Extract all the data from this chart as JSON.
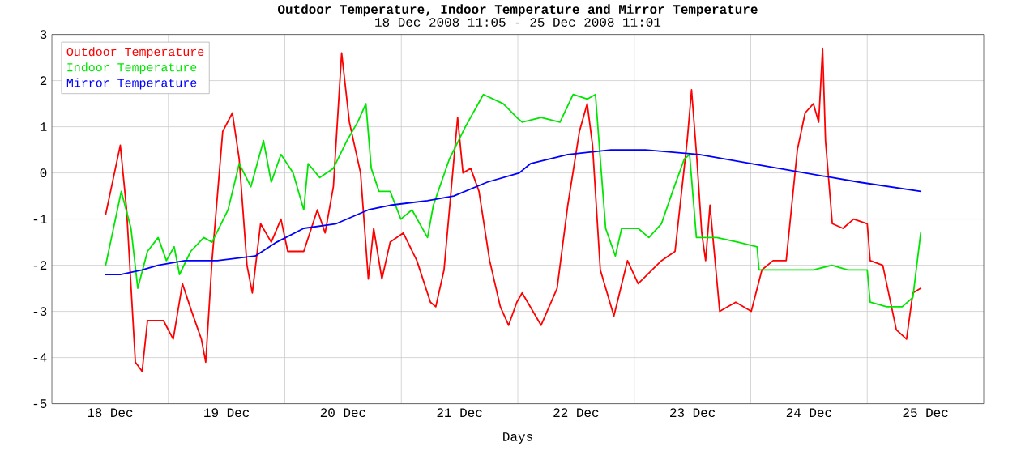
{
  "chart_data": {
    "type": "line",
    "title": "Outdoor Temperature, Indoor Temperature and Mirror Temperature",
    "subtitle": "18 Dec 2008 11:05  -  25 Dec 2008 11:01",
    "xlabel": "Days",
    "xlim": [
      "2008-12-18T00:00",
      "2008-12-26T00:00"
    ],
    "xticks": [
      {
        "value": "2008-12-18T12:00",
        "label": "18 Dec"
      },
      {
        "value": "2008-12-19T00:00",
        "label": null
      },
      {
        "value": "2008-12-19T12:00",
        "label": "19 Dec"
      },
      {
        "value": "2008-12-20T00:00",
        "label": null
      },
      {
        "value": "2008-12-20T12:00",
        "label": "20 Dec"
      },
      {
        "value": "2008-12-21T00:00",
        "label": null
      },
      {
        "value": "2008-12-21T12:00",
        "label": "21 Dec"
      },
      {
        "value": "2008-12-22T00:00",
        "label": null
      },
      {
        "value": "2008-12-22T12:00",
        "label": "22 Dec"
      },
      {
        "value": "2008-12-23T00:00",
        "label": null
      },
      {
        "value": "2008-12-23T12:00",
        "label": "23 Dec"
      },
      {
        "value": "2008-12-24T00:00",
        "label": null
      },
      {
        "value": "2008-12-24T12:00",
        "label": "24 Dec"
      },
      {
        "value": "2008-12-25T00:00",
        "label": null
      },
      {
        "value": "2008-12-25T12:00",
        "label": "25 Dec"
      }
    ],
    "ylim": [
      -5,
      3
    ],
    "yticks": [
      -5,
      -4,
      -3,
      -2,
      -1,
      0,
      1,
      2,
      3
    ],
    "grid": true,
    "legend": "top left",
    "marker": "none",
    "line_style": "solid",
    "series": [
      {
        "name": "Outdoor Temperature",
        "color": "#ff0000",
        "x": [
          "2008-12-18T11:05",
          "2008-12-18T14:06",
          "2008-12-18T15:24",
          "2008-12-18T17:12",
          "2008-12-18T18:36",
          "2008-12-18T19:42",
          "2008-12-18T23:00",
          "2008-12-19T01:00",
          "2008-12-19T02:54",
          "2008-12-19T04:48",
          "2008-12-19T06:48",
          "2008-12-19T07:42",
          "2008-12-19T09:00",
          "2008-12-19T11:12",
          "2008-12-19T13:12",
          "2008-12-19T14:36",
          "2008-12-19T16:12",
          "2008-12-19T17:18",
          "2008-12-19T19:00",
          "2008-12-19T21:12",
          "2008-12-19T23:12",
          "2008-12-20T00:36",
          "2008-12-20T03:54",
          "2008-12-20T06:42",
          "2008-12-20T08:18",
          "2008-12-20T10:00",
          "2008-12-20T11:42",
          "2008-12-20T13:18",
          "2008-12-20T15:36",
          "2008-12-20T17:12",
          "2008-12-20T18:18",
          "2008-12-20T20:00",
          "2008-12-20T21:42",
          "2008-12-21T00:24",
          "2008-12-21T03:12",
          "2008-12-21T06:00",
          "2008-12-21T07:06",
          "2008-12-21T08:48",
          "2008-12-21T11:36",
          "2008-12-21T12:42",
          "2008-12-21T14:18",
          "2008-12-21T16:00",
          "2008-12-21T18:12",
          "2008-12-21T20:24",
          "2008-12-21T22:06",
          "2008-12-21T23:48",
          "2008-12-22T00:54",
          "2008-12-22T04:48",
          "2008-12-22T08:06",
          "2008-12-22T10:18",
          "2008-12-22T12:42",
          "2008-12-22T14:18",
          "2008-12-22T15:24",
          "2008-12-22T17:00",
          "2008-12-22T19:48",
          "2008-12-22T22:36",
          "2008-12-23T00:48",
          "2008-12-23T05:36",
          "2008-12-23T08:24",
          "2008-12-23T10:54",
          "2008-12-23T11:48",
          "2008-12-23T12:54",
          "2008-12-23T13:54",
          "2008-12-23T14:42",
          "2008-12-23T15:36",
          "2008-12-23T17:36",
          "2008-12-23T20:54",
          "2008-12-24T00:06",
          "2008-12-24T02:18",
          "2008-12-24T04:36",
          "2008-12-24T07:18",
          "2008-12-24T09:36",
          "2008-12-24T11:12",
          "2008-12-24T12:54",
          "2008-12-24T14:00",
          "2008-12-24T14:48",
          "2008-12-24T15:24",
          "2008-12-24T16:48",
          "2008-12-24T19:00",
          "2008-12-24T21:12",
          "2008-12-25T00:00",
          "2008-12-25T00:36",
          "2008-12-25T03:12",
          "2008-12-25T06:00",
          "2008-12-25T08:06",
          "2008-12-25T09:24",
          "2008-12-25T11:01"
        ],
        "values": [
          -0.9,
          0.6,
          -0.8,
          -4.1,
          -4.3,
          -3.2,
          -3.2,
          -3.6,
          -2.4,
          -3.0,
          -3.6,
          -4.1,
          -1.9,
          0.9,
          1.3,
          0.3,
          -2.0,
          -2.6,
          -1.1,
          -1.5,
          -1.0,
          -1.7,
          -1.7,
          -0.8,
          -1.3,
          -0.3,
          2.6,
          1.1,
          0.0,
          -2.3,
          -1.2,
          -2.3,
          -1.5,
          -1.3,
          -1.9,
          -2.8,
          -2.9,
          -2.1,
          1.2,
          0.0,
          0.1,
          -0.4,
          -1.9,
          -2.9,
          -3.3,
          -2.8,
          -2.6,
          -3.3,
          -2.5,
          -0.7,
          0.9,
          1.5,
          0.6,
          -2.1,
          -3.1,
          -1.9,
          -2.4,
          -1.9,
          -1.7,
          0.7,
          1.8,
          0.3,
          -1.3,
          -1.9,
          -0.7,
          -3.0,
          -2.8,
          -3.0,
          -2.1,
          -1.9,
          -1.9,
          0.5,
          1.3,
          1.5,
          1.1,
          2.7,
          0.7,
          -1.1,
          -1.2,
          -1.0,
          -1.1,
          -1.9,
          -2.0,
          -3.4,
          -3.6,
          -2.6,
          -2.5
        ]
      },
      {
        "name": "Indoor Temperature",
        "color": "#00e600",
        "x": [
          "2008-12-18T11:05",
          "2008-12-18T14:18",
          "2008-12-18T16:18",
          "2008-12-18T17:42",
          "2008-12-18T19:42",
          "2008-12-18T21:54",
          "2008-12-18T23:36",
          "2008-12-19T01:12",
          "2008-12-19T02:18",
          "2008-12-19T04:36",
          "2008-12-19T07:18",
          "2008-12-19T09:00",
          "2008-12-19T12:18",
          "2008-12-19T14:36",
          "2008-12-19T17:00",
          "2008-12-19T19:36",
          "2008-12-19T21:12",
          "2008-12-19T23:12",
          "2008-12-20T01:42",
          "2008-12-20T03:54",
          "2008-12-20T04:48",
          "2008-12-20T07:12",
          "2008-12-20T10:00",
          "2008-12-20T12:48",
          "2008-12-20T15:00",
          "2008-12-20T16:42",
          "2008-12-20T17:48",
          "2008-12-20T19:24",
          "2008-12-20T21:42",
          "2008-12-20T23:54",
          "2008-12-21T02:12",
          "2008-12-21T05:24",
          "2008-12-21T06:36",
          "2008-12-21T09:54",
          "2008-12-21T13:12",
          "2008-12-21T16:54",
          "2008-12-21T21:00",
          "2008-12-21T23:48",
          "2008-12-22T00:54",
          "2008-12-22T04:48",
          "2008-12-22T08:42",
          "2008-12-22T11:24",
          "2008-12-22T14:18",
          "2008-12-22T16:00",
          "2008-12-22T17:00",
          "2008-12-22T18:06",
          "2008-12-22T20:06",
          "2008-12-22T21:24",
          "2008-12-23T00:48",
          "2008-12-23T03:00",
          "2008-12-23T05:36",
          "2008-12-23T07:54",
          "2008-12-23T10:18",
          "2008-12-23T11:24",
          "2008-12-23T12:48",
          "2008-12-23T17:00",
          "2008-12-23T21:24",
          "2008-12-24T01:18",
          "2008-12-24T01:42",
          "2008-12-24T04:06",
          "2008-12-24T08:36",
          "2008-12-24T12:54",
          "2008-12-24T16:42",
          "2008-12-24T20:00",
          "2008-12-25T00:00",
          "2008-12-25T00:36",
          "2008-12-25T04:00",
          "2008-12-25T07:12",
          "2008-12-25T09:24",
          "2008-12-25T11:01"
        ],
        "values": [
          -2.0,
          -0.4,
          -1.2,
          -2.5,
          -1.7,
          -1.4,
          -1.9,
          -1.6,
          -2.2,
          -1.7,
          -1.4,
          -1.5,
          -0.8,
          0.2,
          -0.3,
          0.7,
          -0.2,
          0.4,
          0.0,
          -0.8,
          0.2,
          -0.1,
          0.1,
          0.7,
          1.1,
          1.5,
          0.1,
          -0.4,
          -0.4,
          -1.0,
          -0.8,
          -1.4,
          -0.7,
          0.3,
          1.0,
          1.7,
          1.5,
          1.2,
          1.1,
          1.2,
          1.1,
          1.7,
          1.6,
          1.7,
          0.3,
          -1.2,
          -1.8,
          -1.2,
          -1.2,
          -1.4,
          -1.1,
          -0.4,
          0.3,
          0.4,
          -1.4,
          -1.4,
          -1.5,
          -1.6,
          -2.1,
          -2.1,
          -2.1,
          -2.1,
          -2.0,
          -2.1,
          -2.1,
          -2.8,
          -2.9,
          -2.9,
          -2.7,
          -1.3
        ]
      },
      {
        "name": "Mirror Temperature",
        "color": "#0000ff",
        "x": [
          "2008-12-18T11:05",
          "2008-12-18T14:06",
          "2008-12-18T18:36",
          "2008-12-18T21:54",
          "2008-12-19T03:24",
          "2008-12-19T10:06",
          "2008-12-19T17:54",
          "2008-12-19T22:18",
          "2008-12-20T03:54",
          "2008-12-20T10:36",
          "2008-12-20T17:12",
          "2008-12-20T21:42",
          "2008-12-21T05:24",
          "2008-12-21T10:48",
          "2008-12-21T17:42",
          "2008-12-22T00:18",
          "2008-12-22T02:36",
          "2008-12-22T10:18",
          "2008-12-22T19:12",
          "2008-12-23T02:18",
          "2008-12-23T13:24",
          "2008-12-24T00:06",
          "2008-12-24T11:12",
          "2008-12-24T22:18",
          "2008-12-25T11:01"
        ],
        "values": [
          -2.2,
          -2.2,
          -2.1,
          -2.0,
          -1.9,
          -1.9,
          -1.8,
          -1.5,
          -1.2,
          -1.1,
          -0.8,
          -0.7,
          -0.6,
          -0.5,
          -0.2,
          0.0,
          0.2,
          0.4,
          0.5,
          0.5,
          0.4,
          0.2,
          0.0,
          -0.2,
          -0.4
        ]
      }
    ]
  }
}
